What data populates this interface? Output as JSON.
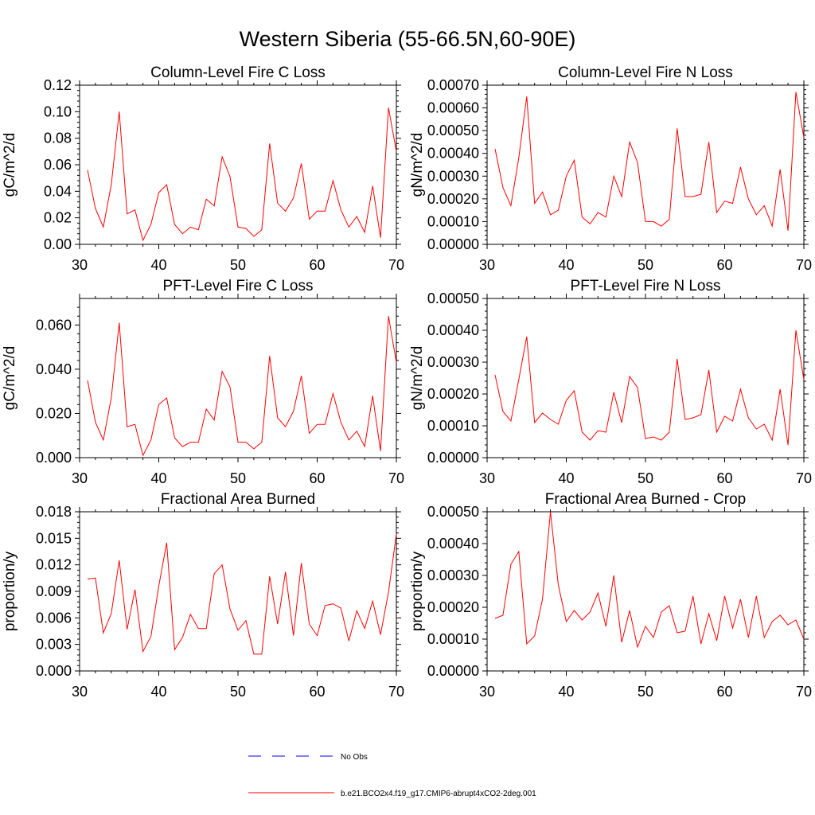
{
  "figure_title": "Western Siberia (55-66.5N,60-90E)",
  "series_color": "#ff0000",
  "obs_color": "#0000ff",
  "legend": {
    "obs_label": "No Obs",
    "model_label": "b.e21.BCO2x4.f19_g17.CMIP6-abrupt4xCO2-2deg.001"
  },
  "chart_data": [
    {
      "type": "line",
      "title": "Column-Level Fire C Loss",
      "ylabel": "gC/m^2/d",
      "xlabel": "",
      "xlim": [
        30,
        70
      ],
      "ylim": [
        0,
        0.12
      ],
      "xticks": [
        30,
        40,
        50,
        60,
        70
      ],
      "xtick_labels": [
        "30",
        "40",
        "50",
        "60",
        "70"
      ],
      "yticks": [
        0,
        0.02,
        0.04,
        0.06,
        0.08,
        0.1,
        0.12
      ],
      "ytick_labels": [
        "0.00",
        "0.02",
        "0.04",
        "0.06",
        "0.08",
        "0.10",
        "0.12"
      ],
      "x": [
        31,
        32,
        33,
        34,
        35,
        36,
        37,
        38,
        39,
        40,
        41,
        42,
        43,
        44,
        45,
        46,
        47,
        48,
        49,
        50,
        51,
        52,
        53,
        54,
        55,
        56,
        57,
        58,
        59,
        60,
        61,
        62,
        63,
        64,
        65,
        66,
        67,
        68,
        69,
        70
      ],
      "series": [
        {
          "name": "b.e21.BCO2x4.f19_g17.CMIP6-abrupt4xCO2-2deg.001",
          "values": [
            0.056,
            0.027,
            0.013,
            0.045,
            0.1,
            0.023,
            0.026,
            0.003,
            0.015,
            0.039,
            0.045,
            0.015,
            0.008,
            0.013,
            0.011,
            0.034,
            0.029,
            0.066,
            0.051,
            0.013,
            0.012,
            0.006,
            0.011,
            0.076,
            0.031,
            0.025,
            0.035,
            0.061,
            0.019,
            0.025,
            0.025,
            0.048,
            0.026,
            0.013,
            0.021,
            0.009,
            0.044,
            0.005,
            0.103,
            0.07
          ]
        }
      ]
    },
    {
      "type": "line",
      "title": "Column-Level Fire N Loss",
      "ylabel": "gN/m^2/d",
      "xlabel": "",
      "xlim": [
        30,
        70
      ],
      "ylim": [
        0,
        0.0007
      ],
      "xticks": [
        30,
        40,
        50,
        60,
        70
      ],
      "xtick_labels": [
        "30",
        "40",
        "50",
        "60",
        "70"
      ],
      "yticks": [
        0,
        0.0001,
        0.0002,
        0.0003,
        0.0004,
        0.0005,
        0.0006,
        0.0007
      ],
      "ytick_labels": [
        "0.00000",
        "0.00010",
        "0.00020",
        "0.00030",
        "0.00040",
        "0.00050",
        "0.00060",
        "0.00070"
      ],
      "x": [
        31,
        32,
        33,
        34,
        35,
        36,
        37,
        38,
        39,
        40,
        41,
        42,
        43,
        44,
        45,
        46,
        47,
        48,
        49,
        50,
        51,
        52,
        53,
        54,
        55,
        56,
        57,
        58,
        59,
        60,
        61,
        62,
        63,
        64,
        65,
        66,
        67,
        68,
        69,
        70
      ],
      "series": [
        {
          "name": "b.e21.BCO2x4.f19_g17.CMIP6-abrupt4xCO2-2deg.001",
          "values": [
            0.00042,
            0.00025,
            0.00017,
            0.00038,
            0.00065,
            0.00018,
            0.00023,
            0.00013,
            0.00015,
            0.0003,
            0.00037,
            0.00012,
            9e-05,
            0.00014,
            0.00012,
            0.0003,
            0.00021,
            0.00045,
            0.00036,
            0.0001,
            0.0001,
            8e-05,
            0.00011,
            0.00051,
            0.00021,
            0.00021,
            0.00022,
            0.00045,
            0.00014,
            0.00019,
            0.00018,
            0.00034,
            0.0002,
            0.00013,
            0.00017,
            8e-05,
            0.00033,
            6e-05,
            0.00067,
            0.00047
          ]
        }
      ]
    },
    {
      "type": "line",
      "title": "PFT-Level Fire C Loss",
      "ylabel": "gC/m^2/d",
      "xlabel": "",
      "xlim": [
        30,
        70
      ],
      "ylim": [
        0,
        0.072
      ],
      "xticks": [
        30,
        40,
        50,
        60,
        70
      ],
      "xtick_labels": [
        "30",
        "40",
        "50",
        "60",
        "70"
      ],
      "yticks": [
        0,
        0.02,
        0.04,
        0.06
      ],
      "ytick_labels": [
        "0.000",
        "0.020",
        "0.040",
        "0.060"
      ],
      "x": [
        31,
        32,
        33,
        34,
        35,
        36,
        37,
        38,
        39,
        40,
        41,
        42,
        43,
        44,
        45,
        46,
        47,
        48,
        49,
        50,
        51,
        52,
        53,
        54,
        55,
        56,
        57,
        58,
        59,
        60,
        61,
        62,
        63,
        64,
        65,
        66,
        67,
        68,
        69,
        70
      ],
      "series": [
        {
          "name": "b.e21.BCO2x4.f19_g17.CMIP6-abrupt4xCO2-2deg.001",
          "values": [
            0.035,
            0.016,
            0.008,
            0.027,
            0.061,
            0.014,
            0.015,
            0.001,
            0.008,
            0.024,
            0.027,
            0.009,
            0.005,
            0.007,
            0.007,
            0.022,
            0.017,
            0.039,
            0.032,
            0.007,
            0.007,
            0.004,
            0.007,
            0.046,
            0.018,
            0.014,
            0.021,
            0.037,
            0.011,
            0.015,
            0.015,
            0.029,
            0.016,
            0.008,
            0.012,
            0.005,
            0.028,
            0.003,
            0.064,
            0.043
          ]
        }
      ]
    },
    {
      "type": "line",
      "title": "PFT-Level Fire N Loss",
      "ylabel": "gN/m^2/d",
      "xlabel": "",
      "xlim": [
        30,
        70
      ],
      "ylim": [
        0,
        0.0005
      ],
      "xticks": [
        30,
        40,
        50,
        60,
        70
      ],
      "xtick_labels": [
        "30",
        "40",
        "50",
        "60",
        "70"
      ],
      "yticks": [
        0,
        0.0001,
        0.0002,
        0.0003,
        0.0004,
        0.0005
      ],
      "ytick_labels": [
        "0.00000",
        "0.00010",
        "0.00020",
        "0.00030",
        "0.00040",
        "0.00050"
      ],
      "x": [
        31,
        32,
        33,
        34,
        35,
        36,
        37,
        38,
        39,
        40,
        41,
        42,
        43,
        44,
        45,
        46,
        47,
        48,
        49,
        50,
        51,
        52,
        53,
        54,
        55,
        56,
        57,
        58,
        59,
        60,
        61,
        62,
        63,
        64,
        65,
        66,
        67,
        68,
        69,
        70
      ],
      "series": [
        {
          "name": "b.e21.BCO2x4.f19_g17.CMIP6-abrupt4xCO2-2deg.001",
          "values": [
            0.00026,
            0.000145,
            0.000115,
            0.000245,
            0.00038,
            0.00011,
            0.00014,
            0.00012,
            0.000105,
            0.00018,
            0.00021,
            8e-05,
            5.5e-05,
            8.5e-05,
            8e-05,
            0.000205,
            0.00011,
            0.000255,
            0.00022,
            6e-05,
            6.5e-05,
            5.5e-05,
            8e-05,
            0.00031,
            0.00012,
            0.000125,
            0.000135,
            0.000275,
            8e-05,
            0.00013,
            0.000115,
            0.000215,
            0.000125,
            9e-05,
            0.000105,
            5.5e-05,
            0.000215,
            4e-05,
            0.0004,
            0.000245
          ]
        }
      ]
    },
    {
      "type": "line",
      "title": "Fractional Area Burned",
      "ylabel": "proportion/y",
      "xlabel": "",
      "xlim": [
        30,
        70
      ],
      "ylim": [
        0,
        0.018
      ],
      "xticks": [
        30,
        40,
        50,
        60,
        70
      ],
      "xtick_labels": [
        "30",
        "40",
        "50",
        "60",
        "70"
      ],
      "yticks": [
        0,
        0.003,
        0.006,
        0.009,
        0.012,
        0.015,
        0.018
      ],
      "ytick_labels": [
        "0.000",
        "0.003",
        "0.006",
        "0.009",
        "0.012",
        "0.015",
        "0.018"
      ],
      "x": [
        31,
        32,
        33,
        34,
        35,
        36,
        37,
        38,
        39,
        40,
        41,
        42,
        43,
        44,
        45,
        46,
        47,
        48,
        49,
        50,
        51,
        52,
        53,
        54,
        55,
        56,
        57,
        58,
        59,
        60,
        61,
        62,
        63,
        64,
        65,
        66,
        67,
        68,
        69,
        70
      ],
      "series": [
        {
          "name": "b.e21.BCO2x4.f19_g17.CMIP6-abrupt4xCO2-2deg.001",
          "values": [
            0.0104,
            0.0105,
            0.0043,
            0.0065,
            0.0125,
            0.0047,
            0.0092,
            0.0022,
            0.0039,
            0.0096,
            0.0145,
            0.0024,
            0.0038,
            0.0064,
            0.0048,
            0.0048,
            0.011,
            0.012,
            0.007,
            0.0046,
            0.0057,
            0.0019,
            0.0019,
            0.0107,
            0.0053,
            0.0112,
            0.004,
            0.0122,
            0.0053,
            0.004,
            0.0074,
            0.0076,
            0.0071,
            0.0034,
            0.0068,
            0.0048,
            0.0079,
            0.0041,
            0.0089,
            0.0155
          ]
        }
      ]
    },
    {
      "type": "line",
      "title": "Fractional Area Burned - Crop",
      "ylabel": "proportion/y",
      "xlabel": "",
      "xlim": [
        30,
        70
      ],
      "ylim": [
        0,
        0.0005
      ],
      "xticks": [
        30,
        40,
        50,
        60,
        70
      ],
      "xtick_labels": [
        "30",
        "40",
        "50",
        "60",
        "70"
      ],
      "yticks": [
        0,
        0.0001,
        0.0002,
        0.0003,
        0.0004,
        0.0005
      ],
      "ytick_labels": [
        "0.00000",
        "0.00010",
        "0.00020",
        "0.00030",
        "0.00040",
        "0.00050"
      ],
      "x": [
        31,
        32,
        33,
        34,
        35,
        36,
        37,
        38,
        39,
        40,
        41,
        42,
        43,
        44,
        45,
        46,
        47,
        48,
        49,
        50,
        51,
        52,
        53,
        54,
        55,
        56,
        57,
        58,
        59,
        60,
        61,
        62,
        63,
        64,
        65,
        66,
        67,
        68,
        69,
        70
      ],
      "series": [
        {
          "name": "b.e21.BCO2x4.f19_g17.CMIP6-abrupt4xCO2-2deg.001",
          "values": [
            0.000165,
            0.000175,
            0.000335,
            0.000375,
            8.5e-05,
            0.00011,
            0.000225,
            0.0005,
            0.00027,
            0.000155,
            0.00019,
            0.00016,
            0.000185,
            0.000245,
            0.00014,
            0.0003,
            9e-05,
            0.00019,
            7.5e-05,
            0.00014,
            0.000105,
            0.000185,
            0.000205,
            0.00012,
            0.000125,
            0.000235,
            8.5e-05,
            0.00018,
            9.5e-05,
            0.000235,
            0.000135,
            0.000225,
            0.000105,
            0.000235,
            0.000105,
            0.000155,
            0.000175,
            0.000145,
            0.00016,
            0.0001
          ]
        }
      ]
    }
  ]
}
